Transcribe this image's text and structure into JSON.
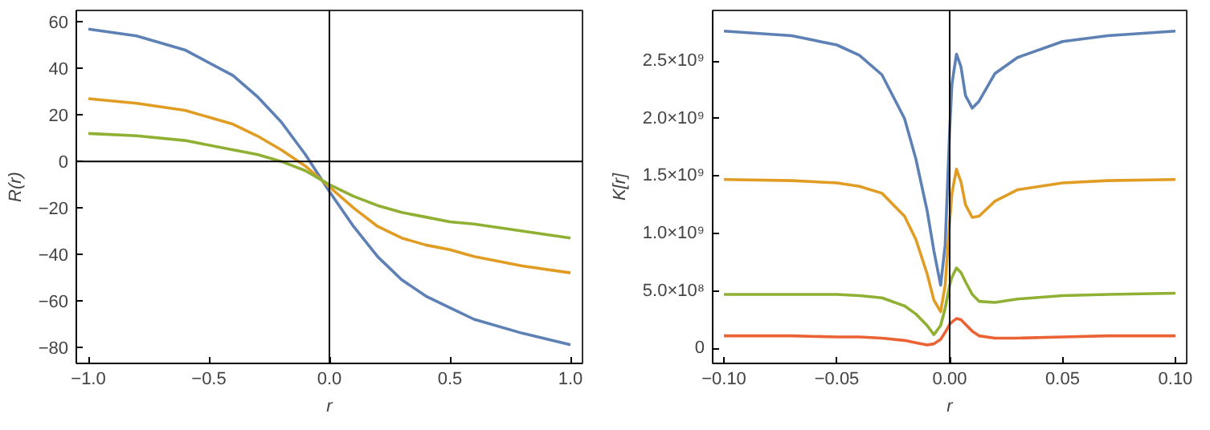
{
  "chart_data": [
    {
      "type": "line",
      "xlabel": "r",
      "ylabel": "R(r)",
      "xlim": [
        -1.05,
        1.05
      ],
      "ylim": [
        -87,
        65
      ],
      "xticks": [
        {
          "value": -1,
          "label": "−1.0"
        },
        {
          "value": -0.5,
          "label": "−0.5"
        },
        {
          "value": 0,
          "label": "0.0"
        },
        {
          "value": 0.5,
          "label": "0.5"
        },
        {
          "value": 1,
          "label": "1.0"
        }
      ],
      "yticks": [
        {
          "value": -80,
          "label": "−80"
        },
        {
          "value": -60,
          "label": "−60"
        },
        {
          "value": -40,
          "label": "−40"
        },
        {
          "value": -20,
          "label": "−20"
        },
        0,
        20,
        40,
        60
      ],
      "grid": false,
      "ref_lines": [
        {
          "axis": "x",
          "value": 0,
          "color": "#000000"
        },
        {
          "axis": "y",
          "value": 0,
          "color": "#000000"
        }
      ],
      "x": [
        -1,
        -0.8,
        -0.6,
        -0.4,
        -0.3,
        -0.2,
        -0.1,
        0,
        0.1,
        0.2,
        0.3,
        0.4,
        0.5,
        0.6,
        0.8,
        1
      ],
      "series": [
        {
          "color": "#5e81b5",
          "values": [
            57,
            54,
            48,
            37,
            28,
            17,
            3,
            -13,
            -28,
            -41,
            -51,
            -58,
            -63,
            -68,
            -74,
            -79
          ]
        },
        {
          "color": "#e19c24",
          "values": [
            27,
            25,
            22,
            16,
            11,
            5,
            -2,
            -11,
            -20,
            -28,
            -33,
            -36,
            -38,
            -41,
            -45,
            -48
          ]
        },
        {
          "color": "#8fb032",
          "values": [
            12,
            11,
            9,
            5,
            3,
            0,
            -4,
            -10,
            -15,
            -19,
            -22,
            -24,
            -26,
            -27,
            -30,
            -33
          ]
        }
      ]
    },
    {
      "type": "line",
      "xlabel": "r",
      "ylabel": "K[r]",
      "xlim": [
        -0.105,
        0.105
      ],
      "ylim": [
        -130000000,
        2940000000
      ],
      "xticks": [
        {
          "value": -0.1,
          "label": "−0.10"
        },
        {
          "value": -0.05,
          "label": "−0.05"
        },
        {
          "value": 0,
          "label": "0.00"
        },
        {
          "value": 0.05,
          "label": "0.05"
        },
        {
          "value": 0.1,
          "label": "0.10"
        }
      ],
      "yticks": [
        {
          "value": 0,
          "label": "0"
        },
        {
          "value": 500000000,
          "label": "5.0×10⁸"
        },
        {
          "value": 1000000000,
          "label": "1.0×10⁹"
        },
        {
          "value": 1500000000,
          "label": "1.5×10⁹"
        },
        {
          "value": 2000000000,
          "label": "2.0×10⁹"
        },
        {
          "value": 2500000000,
          "label": "2.5×10⁹"
        }
      ],
      "grid": false,
      "ref_lines": [
        {
          "axis": "x",
          "value": 0,
          "color": "#000000"
        }
      ],
      "x": [
        -0.1,
        -0.07,
        -0.05,
        -0.04,
        -0.03,
        -0.02,
        -0.015,
        -0.01,
        -0.007,
        -0.004,
        -0.002,
        0,
        0.001,
        0.003,
        0.005,
        0.007,
        0.01,
        0.013,
        0.02,
        0.03,
        0.05,
        0.07,
        0.1
      ],
      "series": [
        {
          "color": "#5e81b5",
          "values": [
            2760000000.0,
            2720000000.0,
            2640000000.0,
            2550000000.0,
            2380000000.0,
            2000000000.0,
            1650000000.0,
            1200000000.0,
            850000000.0,
            550000000.0,
            900000000.0,
            1900000000.0,
            2300000000.0,
            2560000000.0,
            2450000000.0,
            2200000000.0,
            2090000000.0,
            2150000000.0,
            2390000000.0,
            2530000000.0,
            2670000000.0,
            2720000000.0,
            2760000000.0
          ]
        },
        {
          "color": "#e19c24",
          "values": [
            1470000000.0,
            1460000000.0,
            1440000000.0,
            1410000000.0,
            1350000000.0,
            1150000000.0,
            950000000.0,
            650000000.0,
            420000000.0,
            320000000.0,
            550000000.0,
            1100000000.0,
            1350000000.0,
            1560000000.0,
            1450000000.0,
            1250000000.0,
            1140000000.0,
            1150000000.0,
            1280000000.0,
            1380000000.0,
            1440000000.0,
            1460000000.0,
            1470000000.0
          ]
        },
        {
          "color": "#8fb032",
          "values": [
            470000000.0,
            470000000.0,
            470000000.0,
            460000000.0,
            440000000.0,
            370000000.0,
            300000000.0,
            200000000.0,
            120000000.0,
            200000000.0,
            350000000.0,
            550000000.0,
            620000000.0,
            700000000.0,
            660000000.0,
            580000000.0,
            470000000.0,
            410000000.0,
            400000000.0,
            430000000.0,
            460000000.0,
            470000000.0,
            480000000.0
          ]
        },
        {
          "color": "#eb6235",
          "values": [
            110000000.0,
            110000000.0,
            100000000.0,
            100000000.0,
            90000000.0,
            70000000.0,
            50000000.0,
            30000000.0,
            40000000.0,
            80000000.0,
            140000000.0,
            210000000.0,
            230000000.0,
            260000000.0,
            250000000.0,
            210000000.0,
            150000000.0,
            110000000.0,
            90000000.0,
            90000000.0,
            100000000.0,
            110000000.0,
            110000000.0
          ]
        }
      ]
    }
  ]
}
